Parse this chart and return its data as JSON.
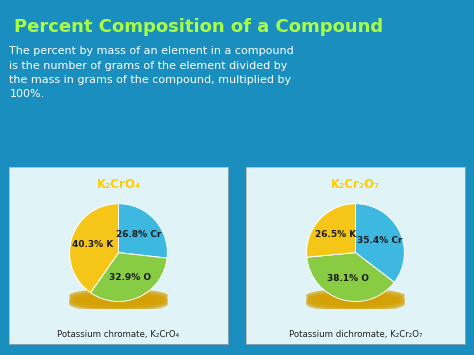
{
  "title": "Percent Composition of a Compound",
  "title_color": "#AAFF44",
  "body_text": "The percent by mass of an element in a compound\nis the number of grams of the element divided by\nthe mass in grams of the compound, multiplied by\n100%.",
  "body_text_color": "#FFFFFF",
  "background_color": "#1A8FBF",
  "pie1_title": "K₂CrO₄",
  "pie1_title_color": "#FFCC00",
  "pie1_values": [
    26.8,
    32.9,
    40.3
  ],
  "pie1_labels": [
    "26.8% Cr",
    "32.9% O",
    "40.3% K"
  ],
  "pie1_colors": [
    "#3DB8E0",
    "#88CC44",
    "#F5C518"
  ],
  "pie1_shadow_color": "#D4A000",
  "pie1_caption": "Potassium chromate, K₂CrO₄",
  "pie2_title": "K₂Cr₂O₇",
  "pie2_title_color": "#FFCC00",
  "pie2_values": [
    35.4,
    38.1,
    26.5
  ],
  "pie2_labels": [
    "35.4% Cr",
    "38.1% O",
    "26.5% K"
  ],
  "pie2_colors": [
    "#3DB8E0",
    "#88CC44",
    "#F5C518"
  ],
  "pie2_shadow_color": "#D4A000",
  "pie2_caption": "Potassium dichromate, K₂Cr₂O₇",
  "box_bg_color": "#E0F4F8",
  "label_color": "#1A1A1A"
}
